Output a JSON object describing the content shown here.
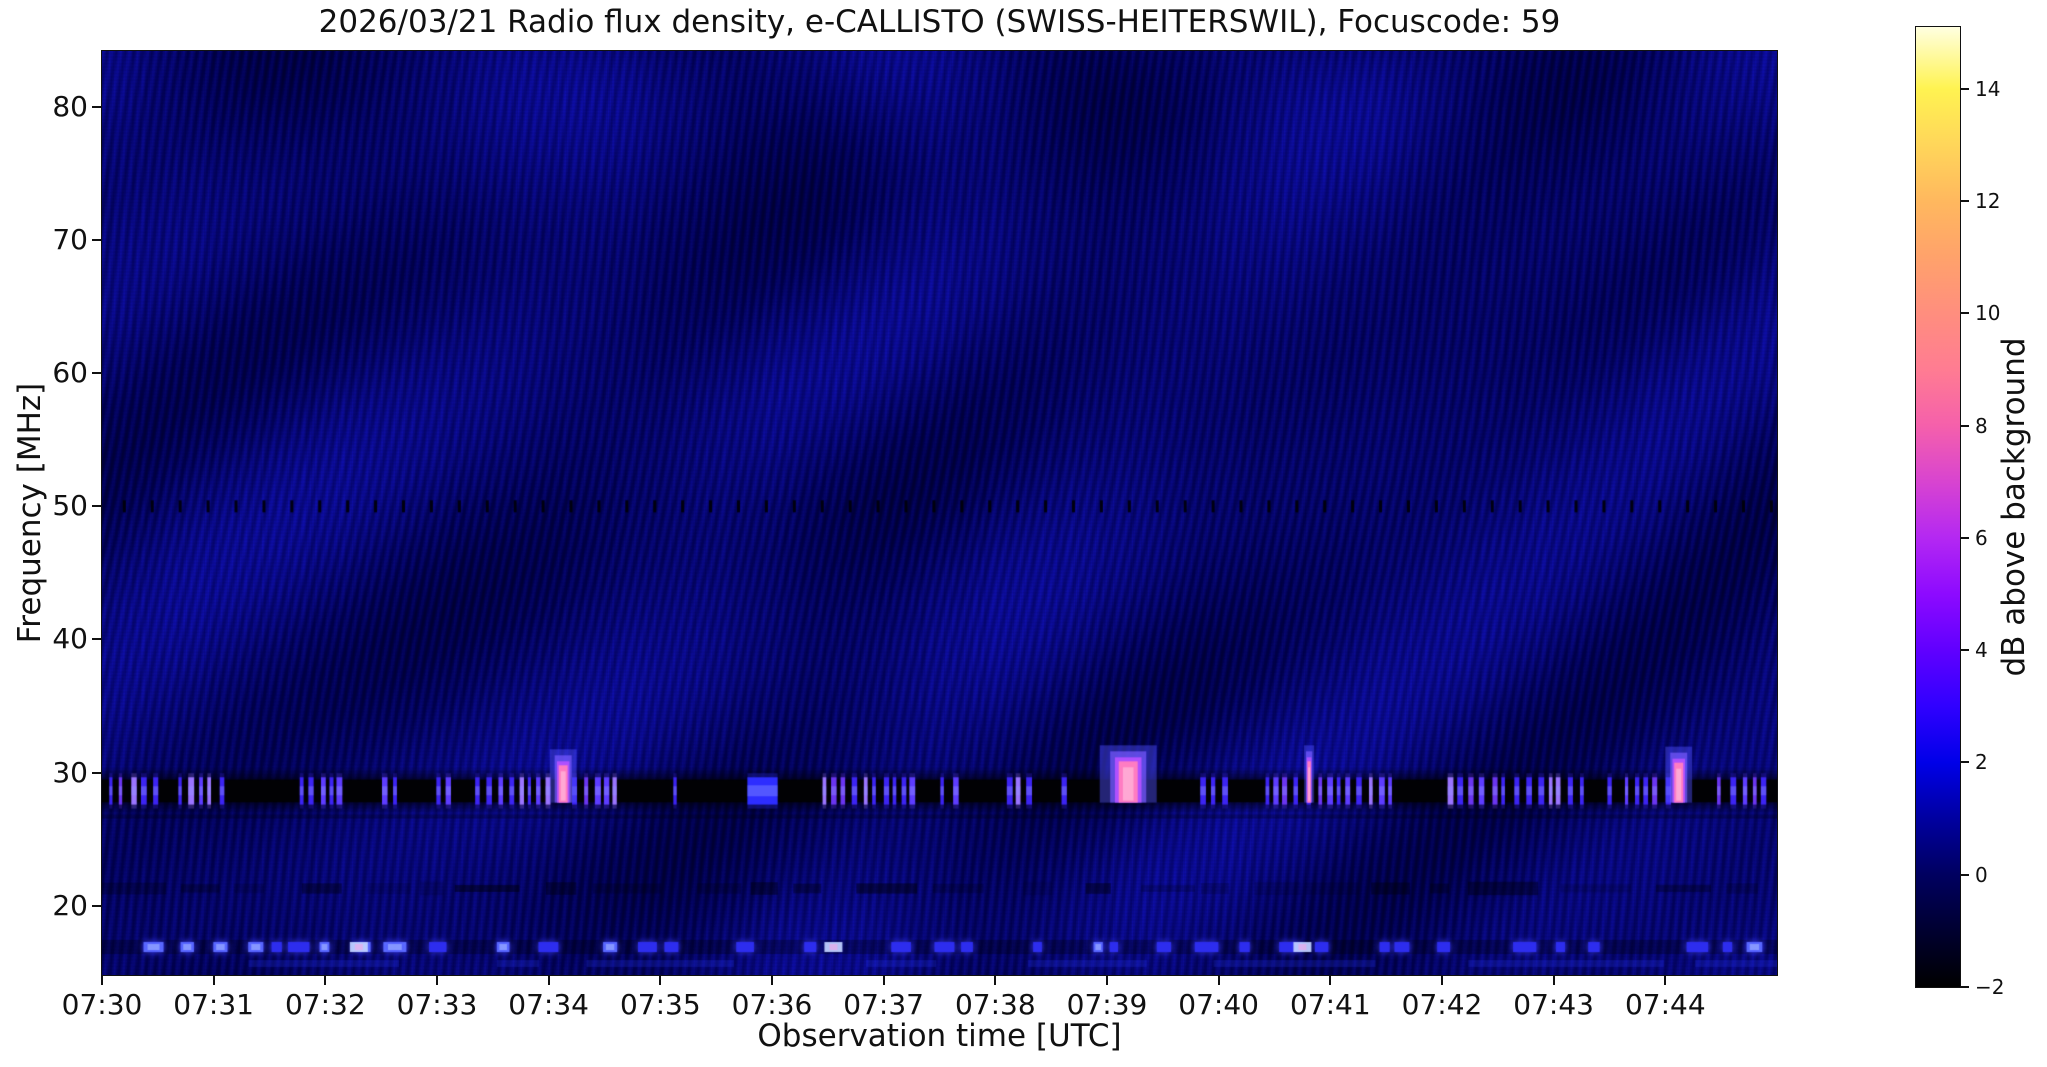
{
  "title": "2026/03/21  Radio flux density, e-CALLISTO (SWISS-HEITERSWIL), Focuscode: 59",
  "axes": {
    "x_label": "Observation time [UTC]",
    "y_label": "Frequency [MHz]",
    "x_tick_labels": [
      "07:30",
      "07:31",
      "07:32",
      "07:33",
      "07:34",
      "07:35",
      "07:36",
      "07:37",
      "07:38",
      "07:39",
      "07:40",
      "07:41",
      "07:42",
      "07:43",
      "07:44"
    ],
    "x_range_min": [
      0,
      15
    ],
    "y_ticks_mhz": [
      80,
      70,
      60,
      50,
      40,
      30,
      20
    ],
    "y_range_mhz": [
      14.8,
      84.2
    ]
  },
  "colorbar": {
    "label": "dB above background",
    "range": [
      -2,
      15.1
    ],
    "ticks": [
      {
        "v": 14,
        "label": "14"
      },
      {
        "v": 12,
        "label": "12"
      },
      {
        "v": 10,
        "label": "10"
      },
      {
        "v": 8,
        "label": "8"
      },
      {
        "v": 6,
        "label": "6"
      },
      {
        "v": 4,
        "label": "4"
      },
      {
        "v": 2,
        "label": "2"
      },
      {
        "v": 0,
        "label": "0"
      },
      {
        "v": -2,
        "label": "−2"
      }
    ],
    "gradient": [
      {
        "v": -2,
        "c": "#000000"
      },
      {
        "v": 0,
        "c": "#000060"
      },
      {
        "v": 1,
        "c": "#0000a0"
      },
      {
        "v": 2,
        "c": "#0000e8"
      },
      {
        "v": 3,
        "c": "#3000ff"
      },
      {
        "v": 4,
        "c": "#6000ff"
      },
      {
        "v": 5,
        "c": "#8d0aff"
      },
      {
        "v": 6,
        "c": "#b428f2"
      },
      {
        "v": 7,
        "c": "#d844d0"
      },
      {
        "v": 8,
        "c": "#f560ab"
      },
      {
        "v": 9,
        "c": "#ff7c92"
      },
      {
        "v": 10,
        "c": "#ff8e7e"
      },
      {
        "v": 11,
        "c": "#ffa26b"
      },
      {
        "v": 12,
        "c": "#ffb85e"
      },
      {
        "v": 13,
        "c": "#ffd65a"
      },
      {
        "v": 14,
        "c": "#fff351"
      },
      {
        "v": 15.1,
        "c": "#ffffe0"
      }
    ]
  },
  "chart_data": {
    "type": "heatmap",
    "title": "2026/03/21  Radio flux density, e-CALLISTO (SWISS-HEITERSWIL), Focuscode: 59",
    "xlabel": "Observation time [UTC]",
    "ylabel": "Frequency [MHz]",
    "zlabel": "dB above background",
    "x_range_utc": [
      "07:30:00",
      "07:45:00"
    ],
    "x_tick_interval_s": 60,
    "y_range_mhz": [
      14.8,
      84.2
    ],
    "z_range_db": [
      -2,
      15.1
    ],
    "colormap": "gnuplot2-like: black - blue - violet - magenta/pink - salmon - orange - yellow - white",
    "background": "dark blue noise (about 0 to 1.5 dB) with diagonal wavy moire interference ripples",
    "features": {
      "rfi_dash_line_50mhz": {
        "freq_mhz": 50.0,
        "dash_period_s": 15,
        "dash_db": -2,
        "description": "regular row of short dark dashes across the whole record"
      },
      "broadcast_band_29mhz": {
        "freq_low_mhz": 27.75,
        "freq_high_mhz": 29.5,
        "base_db": -2,
        "description": "black saturated band with clusters of bright blue/violet vertical channel stripes (2-4 dB)",
        "segments_min": [
          [
            0.05,
            0.55,
            "stripes"
          ],
          [
            0.55,
            0.68,
            "dark"
          ],
          [
            0.68,
            1.14,
            "stripes"
          ],
          [
            1.14,
            1.76,
            "dark"
          ],
          [
            1.76,
            2.18,
            "stripes"
          ],
          [
            2.18,
            2.49,
            "dark"
          ],
          [
            2.49,
            2.67,
            "stripes"
          ],
          [
            2.67,
            2.98,
            "dark"
          ],
          [
            2.98,
            3.12,
            "stripes"
          ],
          [
            3.12,
            3.33,
            "dark"
          ],
          [
            3.33,
            4.0,
            "stripes"
          ],
          [
            4.0,
            4.08,
            "dark"
          ],
          [
            4.08,
            4.18,
            "burst"
          ],
          [
            4.18,
            4.62,
            "stripes"
          ],
          [
            4.62,
            5.1,
            "dark"
          ],
          [
            5.1,
            5.2,
            "stripes"
          ],
          [
            5.2,
            5.78,
            "dark"
          ],
          [
            5.78,
            6.05,
            "solid"
          ],
          [
            6.05,
            6.45,
            "dark"
          ],
          [
            6.45,
            7.3,
            "stripes"
          ],
          [
            7.3,
            7.48,
            "dark"
          ],
          [
            7.48,
            7.7,
            "stripes"
          ],
          [
            7.7,
            8.08,
            "dark"
          ],
          [
            8.08,
            8.38,
            "stripes"
          ],
          [
            8.38,
            8.58,
            "dark"
          ],
          [
            8.58,
            8.66,
            "stripes"
          ],
          [
            8.66,
            9.08,
            "dark"
          ],
          [
            9.08,
            9.3,
            "burst"
          ],
          [
            9.3,
            9.8,
            "dark"
          ],
          [
            9.8,
            10.08,
            "stripes"
          ],
          [
            10.08,
            10.4,
            "dark"
          ],
          [
            10.4,
            11.6,
            "stripes"
          ],
          [
            11.6,
            12.05,
            "dark"
          ],
          [
            12.05,
            13.28,
            "stripes"
          ],
          [
            13.28,
            13.45,
            "dark"
          ],
          [
            13.45,
            13.56,
            "stripes"
          ],
          [
            13.56,
            13.62,
            "dark"
          ],
          [
            13.62,
            14.06,
            "stripes"
          ],
          [
            14.06,
            14.18,
            "burst"
          ],
          [
            14.18,
            14.45,
            "dark"
          ],
          [
            14.45,
            14.95,
            "stripes"
          ],
          [
            14.95,
            15.0,
            "dark"
          ]
        ]
      },
      "bursts": [
        {
          "time_utc": "07:34:08",
          "t_min": 4.13,
          "width_min": 0.08,
          "peak_db": 8,
          "top_freq_mhz": 31.3
        },
        {
          "time_utc": "07:39:11",
          "t_min": 9.19,
          "width_min": 0.17,
          "peak_db": 9,
          "top_freq_mhz": 31.6
        },
        {
          "time_utc": "07:40:49",
          "t_min": 10.81,
          "width_min": 0.03,
          "peak_db": 7,
          "top_freq_mhz": 31.6
        },
        {
          "time_utc": "07:44:07",
          "t_min": 14.12,
          "width_min": 0.08,
          "peak_db": 8,
          "top_freq_mhz": 31.5
        }
      ],
      "line_27mhz": {
        "freq_mhz": 26.7,
        "description": "faint dark horizontal line"
      },
      "band_21mhz": {
        "freq_mhz": 21.3,
        "description": "faint dark mottled band"
      },
      "band_17mhz": {
        "freq_mhz": 16.9,
        "description": "row of fuzzy bright-blue blobs separated by dark gaps",
        "bright_spots_min": [
          2.3,
          6.55,
          10.75
        ]
      },
      "band_16mhz": {
        "freq_mhz": 15.7,
        "description": "patchy slightly brighter blue streaks near bottom edge"
      }
    },
    "palette": {
      "background_bright": "#0000b4",
      "background_dark": "#000040",
      "band_base": "#010104",
      "stripe": "#4a2ef8",
      "stripe_bright": "#9a74ff",
      "solid_block": "#2d2dff",
      "burst_core": "#ff7cc2",
      "burst_core_hot": "#ffa8d4",
      "burst_mid": "#b050ff",
      "burst_halo": "#5050ff",
      "blob_17mhz": "#2d2dee",
      "blob_17mhz_bright": "#becdff"
    }
  }
}
